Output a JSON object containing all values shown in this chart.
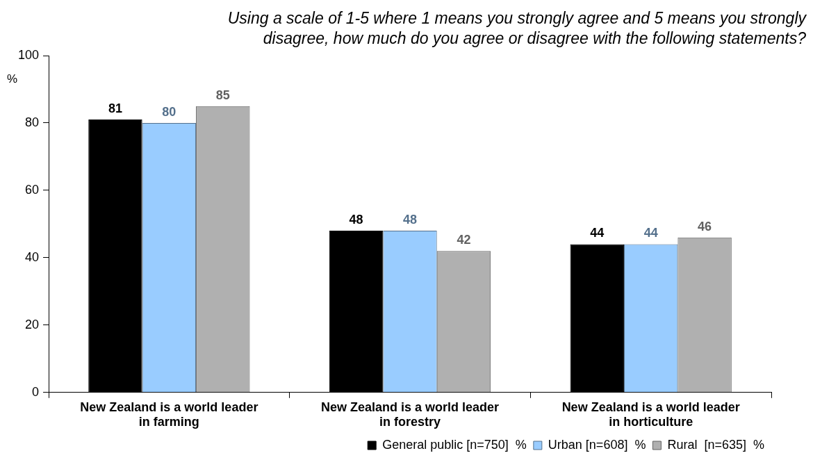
{
  "chart_data": {
    "type": "bar",
    "title": "Using a scale of 1-5 where 1 means you strongly agree and 5 means you strongly\ndisagree, how much do you agree or disagree with the following statements?",
    "ylabel": "%",
    "categories": [
      "New Zealand is a world leader\nin farming",
      "New Zealand is a world leader\nin forestry",
      "New Zealand is a world leader\nin horticulture"
    ],
    "series": [
      {
        "name": "General public [n=750]  %",
        "color": "#000000",
        "values": [
          81,
          48,
          44
        ]
      },
      {
        "name": "Urban [n=608]  %",
        "color": "#99ccff",
        "values": [
          80,
          48,
          44
        ]
      },
      {
        "name": "Rural  [n=635]  %",
        "color": "#b0b0b0",
        "values": [
          85,
          42,
          46
        ]
      }
    ],
    "ylim": [
      0,
      100
    ],
    "yticks": [
      0,
      20,
      40,
      60,
      80,
      100
    ],
    "grid": false,
    "legend": "bottom",
    "data_labels": true
  }
}
